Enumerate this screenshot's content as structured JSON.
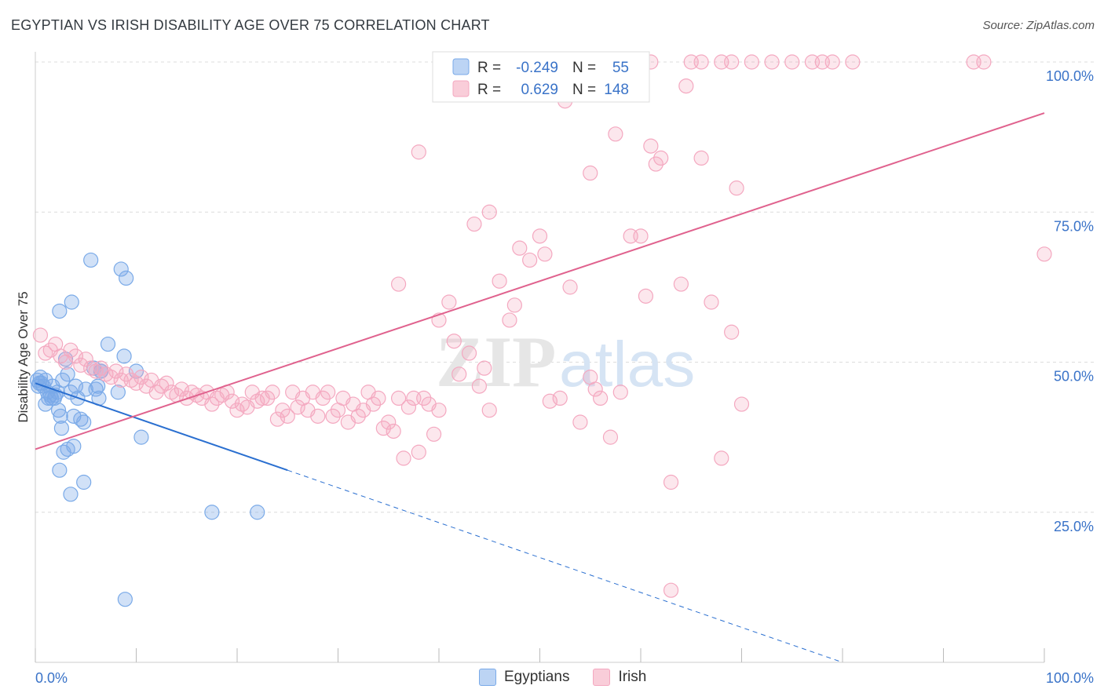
{
  "title": "EGYPTIAN VS IRISH DISABILITY AGE OVER 75 CORRELATION CHART",
  "source": "Source: ZipAtlas.com",
  "watermark": "ZIPatlas",
  "chart_data": {
    "type": "scatter",
    "ylabel": "Disability Age Over 75",
    "xlim": [
      0,
      100
    ],
    "ylim": [
      0,
      100
    ],
    "x_tick_labels": [
      "0.0%",
      "100.0%"
    ],
    "y_tick_labels": [
      "25.0%",
      "50.0%",
      "75.0%",
      "100.0%"
    ],
    "y_ticks": [
      25,
      50,
      75,
      100
    ],
    "grid": true,
    "legend_position": "top-center",
    "series": [
      {
        "name": "Egyptians",
        "color": "#7aaae8",
        "line_color": "#2a6fd0",
        "R": "-0.249",
        "N": "55",
        "trend": {
          "x0": 0,
          "y0": 46.5,
          "x1": 25,
          "y1": 32,
          "dash_to_x": 80,
          "dash_to_y": 0
        },
        "points": [
          [
            0.2,
            47
          ],
          [
            0.3,
            46
          ],
          [
            0.5,
            47.5
          ],
          [
            0.6,
            46.5
          ],
          [
            0.8,
            46
          ],
          [
            1,
            47
          ],
          [
            1.2,
            45
          ],
          [
            1.3,
            44
          ],
          [
            1.5,
            44.5
          ],
          [
            1.7,
            46
          ],
          [
            1.9,
            44
          ],
          [
            2,
            44.5
          ],
          [
            2.2,
            45
          ],
          [
            1,
            43
          ],
          [
            2.3,
            42
          ],
          [
            2.5,
            41
          ],
          [
            2.6,
            39
          ],
          [
            3,
            50.5
          ],
          [
            3.2,
            48
          ],
          [
            3.5,
            45
          ],
          [
            3.8,
            41
          ],
          [
            4,
            46
          ],
          [
            4.2,
            44
          ],
          [
            4.5,
            40.5
          ],
          [
            4.8,
            40
          ],
          [
            5,
            45.5
          ],
          [
            2.4,
            58.5
          ],
          [
            3.6,
            60
          ],
          [
            5.5,
            67
          ],
          [
            6,
            45.5
          ],
          [
            6.2,
            46
          ],
          [
            6.5,
            48.5
          ],
          [
            7.2,
            53
          ],
          [
            8.2,
            45
          ],
          [
            8.5,
            65.5
          ],
          [
            8.8,
            51
          ],
          [
            9,
            64
          ],
          [
            10,
            48.5
          ],
          [
            10.5,
            37.5
          ],
          [
            2.8,
            35
          ],
          [
            3.2,
            35.5
          ],
          [
            3.8,
            36
          ],
          [
            2.4,
            32
          ],
          [
            3.5,
            28
          ],
          [
            4.8,
            30
          ],
          [
            17.5,
            25
          ],
          [
            22,
            25
          ],
          [
            8.9,
            10.5
          ],
          [
            6.5,
            48.5
          ],
          [
            0.4,
            46.5
          ],
          [
            1.6,
            44
          ],
          [
            2.7,
            47
          ],
          [
            5.8,
            49
          ],
          [
            6.3,
            44
          ]
        ]
      },
      {
        "name": "Irish",
        "color": "#f4a8c0",
        "line_color": "#e0628e",
        "R": "0.629",
        "N": "148",
        "trend": {
          "x0": 0,
          "y0": 35.5,
          "x1": 100,
          "y1": 91.5
        },
        "points": [
          [
            0.5,
            54.5
          ],
          [
            1,
            51.5
          ],
          [
            1.5,
            52
          ],
          [
            2,
            53
          ],
          [
            2.5,
            51
          ],
          [
            3,
            50
          ],
          [
            3.5,
            52
          ],
          [
            4,
            51
          ],
          [
            4.5,
            49.5
          ],
          [
            5,
            50.5
          ],
          [
            5.5,
            49
          ],
          [
            6,
            48.5
          ],
          [
            6.5,
            49
          ],
          [
            7,
            48
          ],
          [
            7.5,
            47.5
          ],
          [
            8,
            48.5
          ],
          [
            8.5,
            47
          ],
          [
            9,
            48
          ],
          [
            9.5,
            47
          ],
          [
            10,
            46.5
          ],
          [
            10.5,
            47.5
          ],
          [
            11,
            46
          ],
          [
            11.5,
            47
          ],
          [
            12,
            45
          ],
          [
            12.5,
            46
          ],
          [
            13,
            46.5
          ],
          [
            13.5,
            45
          ],
          [
            14,
            44.5
          ],
          [
            14.5,
            45.5
          ],
          [
            15,
            44
          ],
          [
            15.5,
            45
          ],
          [
            16,
            44.5
          ],
          [
            16.5,
            44
          ],
          [
            17,
            45
          ],
          [
            17.5,
            43
          ],
          [
            18,
            44
          ],
          [
            18.5,
            44.5
          ],
          [
            19,
            45
          ],
          [
            19.5,
            43.5
          ],
          [
            20,
            42
          ],
          [
            20.5,
            43
          ],
          [
            21,
            42.5
          ],
          [
            21.5,
            45
          ],
          [
            22,
            43.5
          ],
          [
            22.5,
            44
          ],
          [
            23,
            44
          ],
          [
            23.5,
            45
          ],
          [
            24,
            40.5
          ],
          [
            24.5,
            42
          ],
          [
            25,
            41
          ],
          [
            25.5,
            45
          ],
          [
            26,
            42.5
          ],
          [
            26.5,
            44
          ],
          [
            27,
            42
          ],
          [
            27.5,
            45
          ],
          [
            28,
            41
          ],
          [
            28.5,
            44
          ],
          [
            29,
            45
          ],
          [
            29.5,
            41
          ],
          [
            30,
            42
          ],
          [
            30.5,
            44
          ],
          [
            31,
            40
          ],
          [
            31.5,
            43
          ],
          [
            32,
            41
          ],
          [
            32.5,
            42
          ],
          [
            33,
            45
          ],
          [
            33.5,
            43
          ],
          [
            34,
            44
          ],
          [
            34.5,
            39
          ],
          [
            35,
            40
          ],
          [
            35.5,
            38.5
          ],
          [
            36,
            44
          ],
          [
            36.5,
            34
          ],
          [
            37,
            42.5
          ],
          [
            37.5,
            44
          ],
          [
            38,
            35
          ],
          [
            38.5,
            44
          ],
          [
            39,
            43
          ],
          [
            39.5,
            38
          ],
          [
            40,
            42
          ],
          [
            41,
            60
          ],
          [
            41.5,
            53.5
          ],
          [
            42,
            48
          ],
          [
            43,
            51.5
          ],
          [
            44,
            46
          ],
          [
            44.5,
            49
          ],
          [
            45,
            42
          ],
          [
            46,
            63.5
          ],
          [
            47,
            57
          ],
          [
            47.5,
            59.5
          ],
          [
            48,
            69
          ],
          [
            49,
            67
          ],
          [
            50,
            71
          ],
          [
            51,
            43.5
          ],
          [
            52,
            44
          ],
          [
            53,
            62.5
          ],
          [
            54,
            40
          ],
          [
            55,
            47.5
          ],
          [
            55.5,
            45.5
          ],
          [
            56,
            44
          ],
          [
            57,
            37.5
          ],
          [
            57.5,
            88
          ],
          [
            58,
            45
          ],
          [
            59,
            71
          ],
          [
            60,
            71
          ],
          [
            60.5,
            61
          ],
          [
            61,
            86
          ],
          [
            61.5,
            83
          ],
          [
            62,
            84
          ],
          [
            63,
            30
          ],
          [
            63,
            12
          ],
          [
            64,
            63
          ],
          [
            66,
            84
          ],
          [
            67,
            60
          ],
          [
            68,
            34
          ],
          [
            69,
            55
          ],
          [
            69.5,
            79
          ],
          [
            70,
            43
          ],
          [
            36,
            63
          ],
          [
            38,
            85
          ],
          [
            40,
            57
          ],
          [
            43.5,
            73
          ],
          [
            45,
            75
          ],
          [
            50.5,
            68
          ],
          [
            52.5,
            93.5
          ],
          [
            55,
            81.5
          ],
          [
            64.5,
            96
          ],
          [
            60,
            100
          ],
          [
            61,
            100
          ],
          [
            65,
            100
          ],
          [
            66,
            100
          ],
          [
            68,
            100
          ],
          [
            69,
            100
          ],
          [
            71,
            100
          ],
          [
            73,
            100
          ],
          [
            75,
            100
          ],
          [
            77,
            100
          ],
          [
            78,
            100
          ],
          [
            79,
            100
          ],
          [
            81,
            100
          ],
          [
            93,
            100
          ],
          [
            94,
            100
          ],
          [
            100,
            68
          ]
        ]
      }
    ]
  },
  "legend": {
    "r_label": "R =",
    "n_label": "N =",
    "series_names": [
      "Egyptians",
      "Irish"
    ]
  }
}
